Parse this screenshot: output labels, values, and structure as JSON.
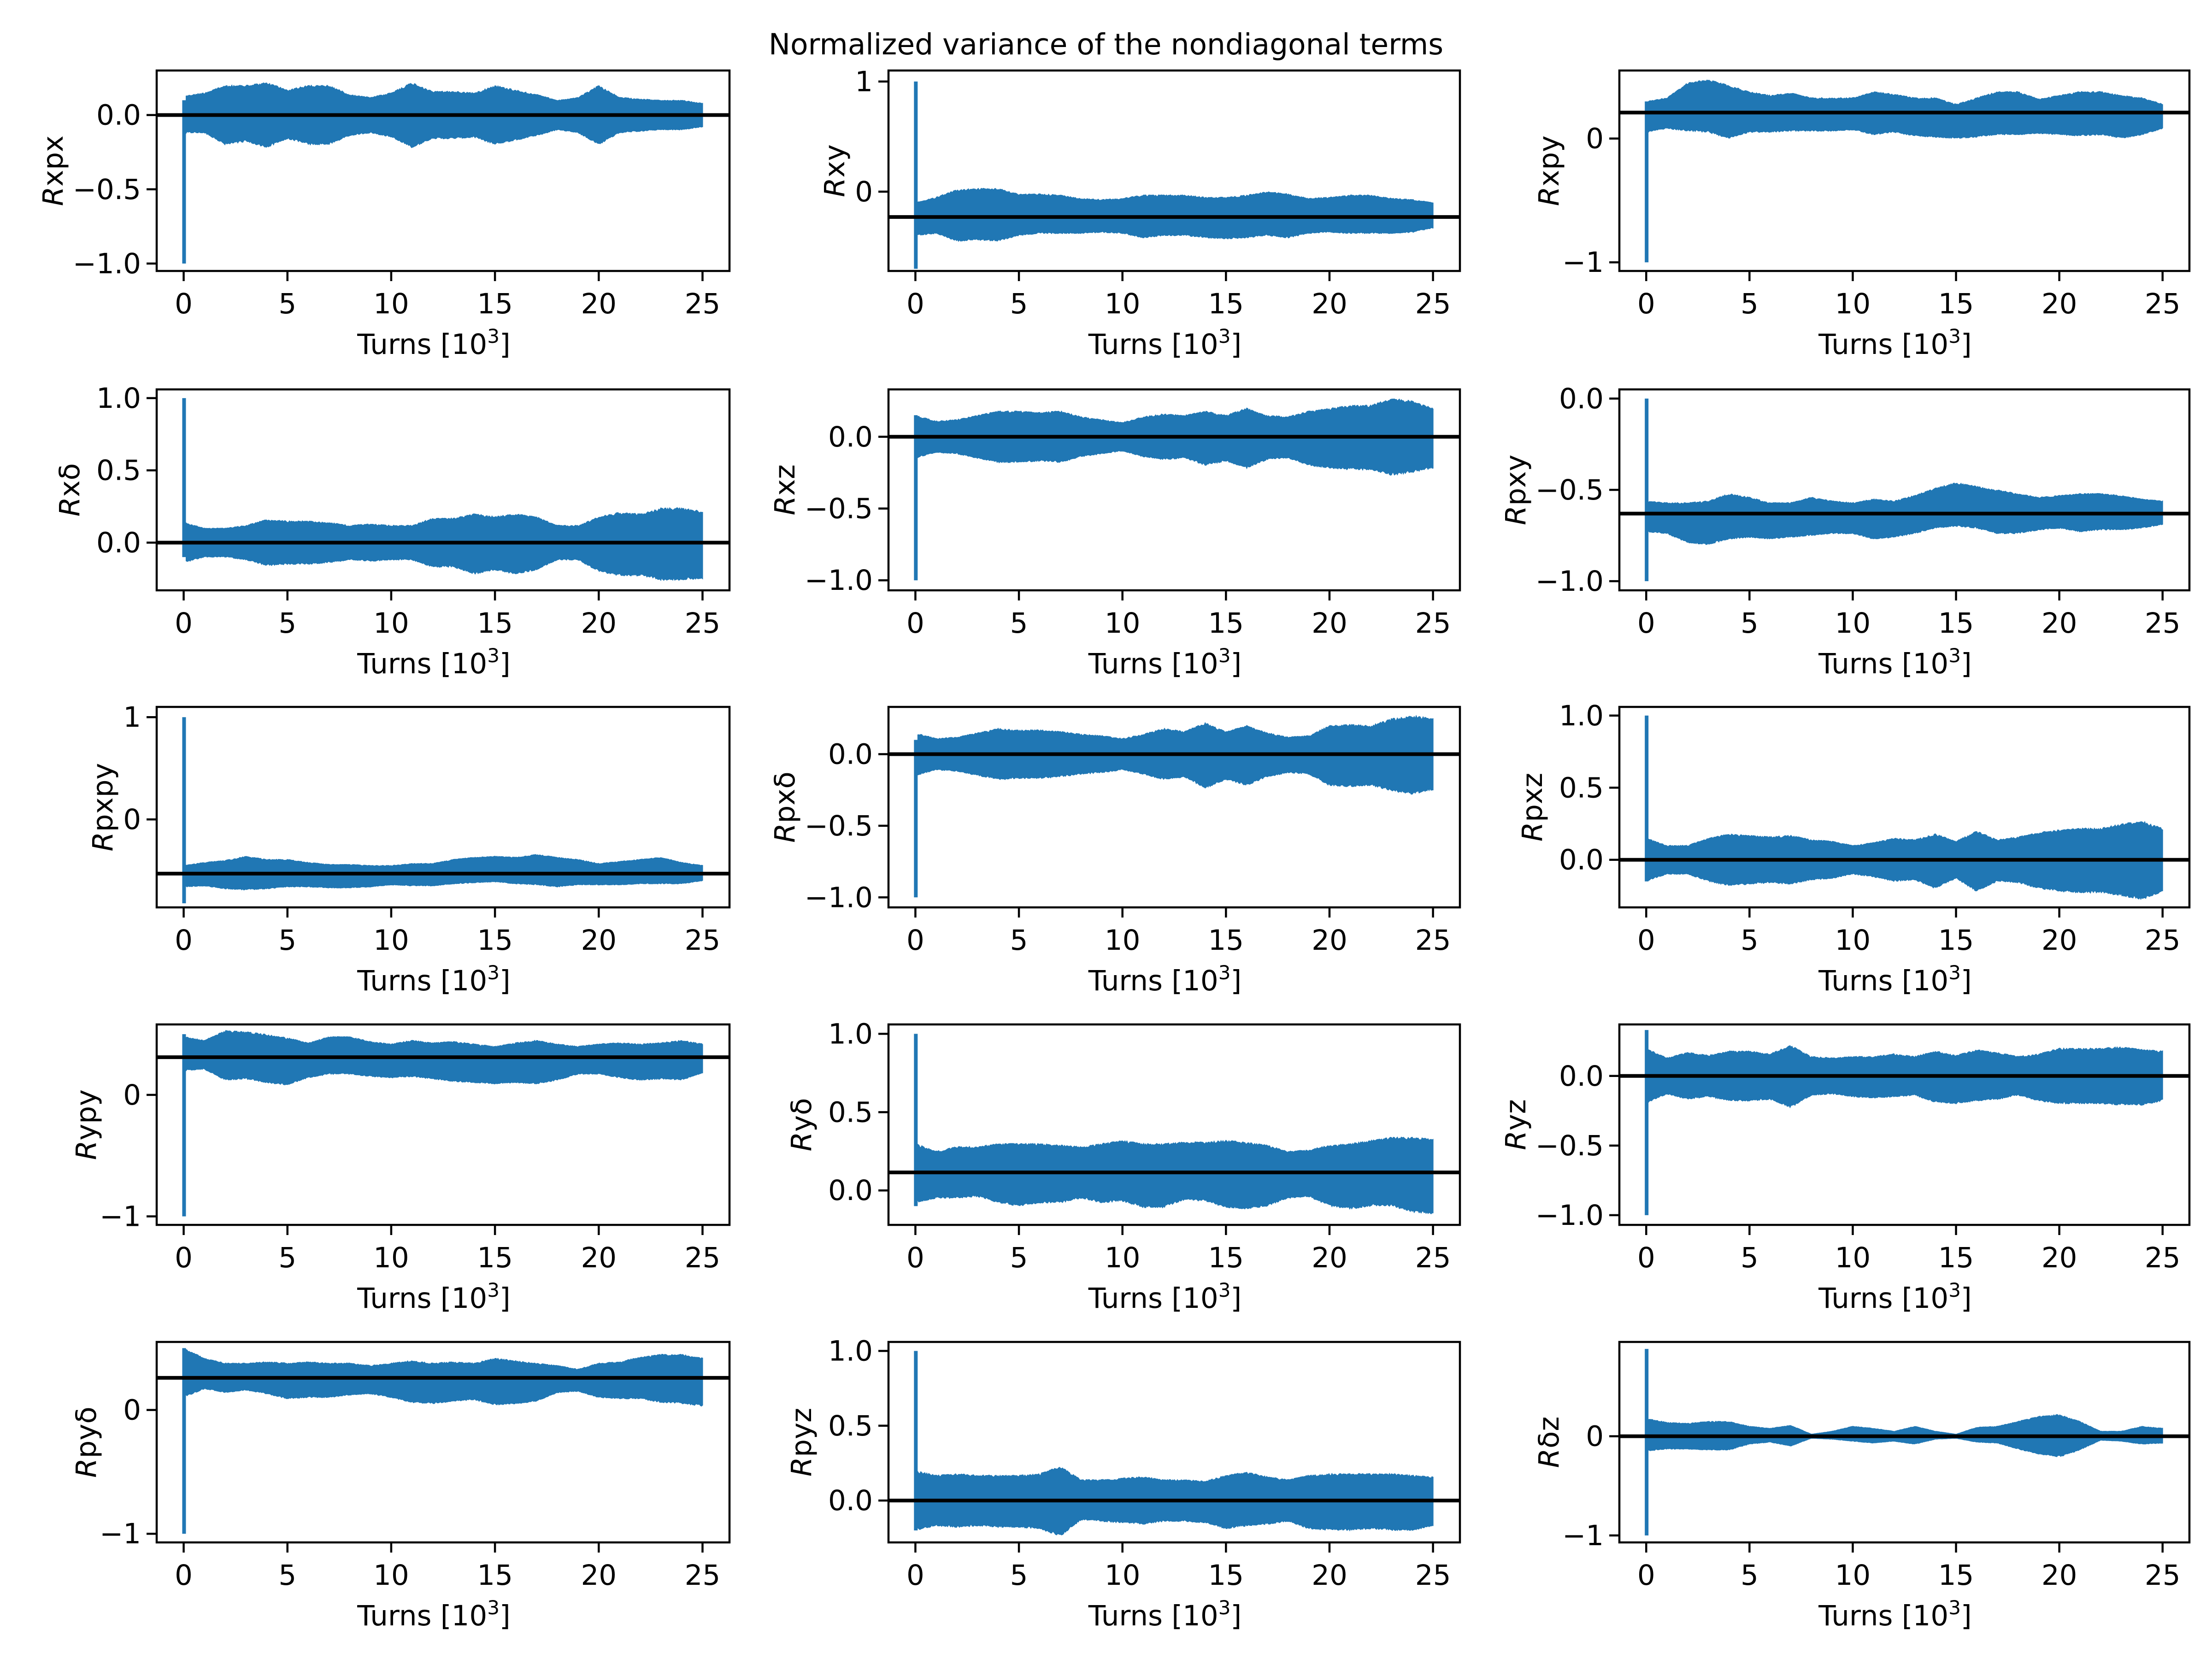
{
  "chart_data": {
    "title": "Normalized variance of the nondiagonal terms",
    "type": "line",
    "layout": {
      "rows": 5,
      "cols": 3
    },
    "series_color": "#2077b4",
    "mean_line_color": "#000000",
    "xlabel": "Turns [10",
    "xlabel_sup": "3",
    "xlabel_close": "]",
    "x_ticks": [
      0,
      5,
      10,
      15,
      20,
      25
    ],
    "x_tick_labels": [
      "0",
      "5",
      "10",
      "15",
      "20",
      "25"
    ],
    "xlim": [
      -1.3,
      26.3
    ],
    "x_envelope_points": [
      0,
      1,
      2,
      3,
      4,
      5,
      6,
      7,
      8,
      9,
      10,
      11,
      12,
      13,
      14,
      15,
      16,
      17,
      18,
      19,
      20,
      21,
      22,
      23,
      24,
      25
    ],
    "panels": [
      {
        "ylabel_main": "R",
        "ylabel_sub": "xpx",
        "ylim": [
          -1.05,
          0.3
        ],
        "yticks": [
          -1.0,
          -0.5,
          0.0
        ],
        "ytick_labels": [
          "−1.0",
          "−0.5",
          "0.0"
        ],
        "mean": 0.0,
        "spike_min": -1.0,
        "spike_max": 0.1,
        "upper": [
          0.13,
          0.15,
          0.2,
          0.2,
          0.22,
          0.17,
          0.2,
          0.2,
          0.14,
          0.12,
          0.15,
          0.22,
          0.16,
          0.16,
          0.15,
          0.2,
          0.17,
          0.14,
          0.1,
          0.12,
          0.2,
          0.12,
          0.11,
          0.1,
          0.1,
          0.08
        ],
        "lower": [
          -0.12,
          -0.12,
          -0.2,
          -0.18,
          -0.22,
          -0.16,
          -0.2,
          -0.2,
          -0.14,
          -0.12,
          -0.15,
          -0.22,
          -0.16,
          -0.16,
          -0.15,
          -0.2,
          -0.17,
          -0.14,
          -0.1,
          -0.12,
          -0.2,
          -0.12,
          -0.11,
          -0.1,
          -0.1,
          -0.08
        ]
      },
      {
        "ylabel_main": "R",
        "ylabel_sub": "xy",
        "ylim": [
          -0.72,
          1.1
        ],
        "yticks": [
          0,
          1
        ],
        "ytick_labels": [
          "0",
          "1"
        ],
        "mean": -0.23,
        "spike_min": -0.7,
        "spike_max": 1.0,
        "upper": [
          -0.1,
          -0.05,
          0.02,
          0.03,
          0.03,
          -0.02,
          -0.02,
          -0.03,
          -0.06,
          -0.07,
          -0.06,
          -0.03,
          -0.03,
          -0.03,
          -0.05,
          -0.05,
          -0.03,
          0.0,
          -0.02,
          -0.06,
          -0.05,
          -0.03,
          -0.03,
          -0.06,
          -0.07,
          -0.1
        ],
        "lower": [
          -0.4,
          -0.38,
          -0.45,
          -0.44,
          -0.45,
          -0.4,
          -0.38,
          -0.38,
          -0.38,
          -0.37,
          -0.38,
          -0.42,
          -0.4,
          -0.4,
          -0.42,
          -0.43,
          -0.42,
          -0.4,
          -0.42,
          -0.38,
          -0.37,
          -0.38,
          -0.38,
          -0.38,
          -0.37,
          -0.33
        ]
      },
      {
        "ylabel_main": "R",
        "ylabel_sub": "xpy",
        "ylim": [
          -1.07,
          0.55
        ],
        "yticks": [
          -1,
          0
        ],
        "ytick_labels": [
          "−1",
          "0"
        ],
        "mean": 0.21,
        "spike_min": -1.0,
        "spike_max": 0.3,
        "upper": [
          0.3,
          0.33,
          0.45,
          0.48,
          0.43,
          0.38,
          0.35,
          0.37,
          0.33,
          0.33,
          0.33,
          0.38,
          0.36,
          0.33,
          0.33,
          0.28,
          0.33,
          0.38,
          0.38,
          0.32,
          0.35,
          0.38,
          0.38,
          0.35,
          0.33,
          0.28
        ],
        "lower": [
          0.05,
          0.08,
          0.06,
          0.05,
          0.0,
          0.05,
          0.05,
          0.06,
          0.06,
          0.06,
          0.07,
          0.03,
          0.05,
          0.02,
          0.01,
          0.0,
          0.01,
          0.03,
          0.03,
          0.04,
          0.03,
          0.02,
          0.03,
          0.0,
          0.03,
          0.08
        ]
      },
      {
        "ylabel_main": "R",
        "ylabel_sub": "xδ",
        "ylim": [
          -0.33,
          1.06
        ],
        "yticks": [
          0.0,
          0.5,
          1.0
        ],
        "ytick_labels": [
          "0.0",
          "0.5",
          "1.0"
        ],
        "mean": 0.0,
        "spike_min": -0.1,
        "spike_max": 1.0,
        "upper": [
          0.14,
          0.1,
          0.1,
          0.12,
          0.16,
          0.15,
          0.15,
          0.14,
          0.12,
          0.13,
          0.12,
          0.12,
          0.17,
          0.17,
          0.2,
          0.18,
          0.2,
          0.18,
          0.12,
          0.12,
          0.18,
          0.21,
          0.2,
          0.24,
          0.24,
          0.22
        ],
        "lower": [
          -0.14,
          -0.1,
          -0.1,
          -0.12,
          -0.16,
          -0.15,
          -0.15,
          -0.14,
          -0.12,
          -0.13,
          -0.12,
          -0.12,
          -0.17,
          -0.17,
          -0.22,
          -0.19,
          -0.22,
          -0.19,
          -0.12,
          -0.12,
          -0.2,
          -0.23,
          -0.23,
          -0.26,
          -0.26,
          -0.25
        ]
      },
      {
        "ylabel_main": "R",
        "ylabel_sub": "xz",
        "ylim": [
          -1.07,
          0.33
        ],
        "yticks": [
          -1.0,
          -0.5,
          0.0
        ],
        "ytick_labels": [
          "−1.0",
          "−0.5",
          "0.0"
        ],
        "mean": 0.0,
        "spike_min": -1.0,
        "spike_max": 0.15,
        "upper": [
          0.15,
          0.11,
          0.12,
          0.15,
          0.18,
          0.18,
          0.17,
          0.18,
          0.14,
          0.12,
          0.1,
          0.14,
          0.16,
          0.15,
          0.18,
          0.15,
          0.2,
          0.15,
          0.14,
          0.18,
          0.2,
          0.22,
          0.22,
          0.27,
          0.25,
          0.2
        ],
        "lower": [
          -0.15,
          -0.11,
          -0.12,
          -0.15,
          -0.18,
          -0.18,
          -0.17,
          -0.18,
          -0.14,
          -0.12,
          -0.1,
          -0.14,
          -0.16,
          -0.15,
          -0.2,
          -0.17,
          -0.22,
          -0.16,
          -0.15,
          -0.2,
          -0.22,
          -0.23,
          -0.23,
          -0.27,
          -0.25,
          -0.22
        ]
      },
      {
        "ylabel_main": "R",
        "ylabel_sub": "pxy",
        "ylim": [
          -1.05,
          0.05
        ],
        "yticks": [
          -1.0,
          -0.5,
          0.0
        ],
        "ytick_labels": [
          "−1.0",
          "−0.5",
          "0.0"
        ],
        "mean": -0.63,
        "spike_min": -1.0,
        "spike_max": 0.0,
        "upper": [
          -0.56,
          -0.57,
          -0.57,
          -0.56,
          -0.52,
          -0.54,
          -0.57,
          -0.57,
          -0.54,
          -0.56,
          -0.57,
          -0.55,
          -0.56,
          -0.53,
          -0.49,
          -0.46,
          -0.48,
          -0.5,
          -0.52,
          -0.54,
          -0.53,
          -0.52,
          -0.52,
          -0.53,
          -0.55,
          -0.56
        ],
        "lower": [
          -0.73,
          -0.74,
          -0.79,
          -0.8,
          -0.77,
          -0.76,
          -0.77,
          -0.76,
          -0.75,
          -0.74,
          -0.74,
          -0.77,
          -0.76,
          -0.74,
          -0.71,
          -0.7,
          -0.71,
          -0.74,
          -0.74,
          -0.72,
          -0.71,
          -0.73,
          -0.72,
          -0.72,
          -0.71,
          -0.69
        ]
      },
      {
        "ylabel_main": "R",
        "ylabel_sub": "pxpy",
        "ylim": [
          -0.86,
          1.1
        ],
        "yticks": [
          0,
          1
        ],
        "ytick_labels": [
          "0",
          "1"
        ],
        "mean": -0.53,
        "spike_min": -0.82,
        "spike_max": 1.0,
        "upper": [
          -0.45,
          -0.42,
          -0.4,
          -0.36,
          -0.39,
          -0.39,
          -0.42,
          -0.44,
          -0.44,
          -0.45,
          -0.45,
          -0.43,
          -0.43,
          -0.39,
          -0.37,
          -0.36,
          -0.37,
          -0.34,
          -0.37,
          -0.39,
          -0.43,
          -0.41,
          -0.39,
          -0.37,
          -0.42,
          -0.45
        ],
        "lower": [
          -0.66,
          -0.65,
          -0.68,
          -0.69,
          -0.68,
          -0.66,
          -0.66,
          -0.67,
          -0.67,
          -0.66,
          -0.64,
          -0.65,
          -0.65,
          -0.63,
          -0.62,
          -0.61,
          -0.63,
          -0.64,
          -0.66,
          -0.64,
          -0.64,
          -0.64,
          -0.63,
          -0.63,
          -0.63,
          -0.6
        ]
      },
      {
        "ylabel_main": "R",
        "ylabel_sub": "pxδ",
        "ylim": [
          -1.07,
          0.33
        ],
        "yticks": [
          -1.0,
          -0.5,
          0.0
        ],
        "ytick_labels": [
          "−1.0",
          "−0.5",
          "0.0"
        ],
        "mean": 0.0,
        "spike_min": -1.0,
        "spike_max": 0.1,
        "upper": [
          0.15,
          0.11,
          0.12,
          0.15,
          0.18,
          0.17,
          0.17,
          0.16,
          0.14,
          0.13,
          0.11,
          0.14,
          0.18,
          0.16,
          0.22,
          0.16,
          0.2,
          0.15,
          0.12,
          0.13,
          0.2,
          0.21,
          0.2,
          0.25,
          0.27,
          0.25
        ],
        "lower": [
          -0.15,
          -0.11,
          -0.12,
          -0.15,
          -0.18,
          -0.17,
          -0.17,
          -0.16,
          -0.14,
          -0.13,
          -0.11,
          -0.14,
          -0.18,
          -0.16,
          -0.24,
          -0.18,
          -0.22,
          -0.16,
          -0.13,
          -0.14,
          -0.22,
          -0.23,
          -0.22,
          -0.26,
          -0.28,
          -0.25
        ]
      },
      {
        "ylabel_main": "R",
        "ylabel_sub": "pxz",
        "ylim": [
          -0.33,
          1.06
        ],
        "yticks": [
          0.0,
          0.5,
          1.0
        ],
        "ytick_labels": [
          "0.0",
          "0.5",
          "1.0"
        ],
        "mean": 0.0,
        "spike_min": -0.15,
        "spike_max": 1.0,
        "upper": [
          0.15,
          0.1,
          0.1,
          0.15,
          0.18,
          0.17,
          0.16,
          0.17,
          0.14,
          0.13,
          0.1,
          0.12,
          0.15,
          0.14,
          0.18,
          0.13,
          0.2,
          0.14,
          0.16,
          0.19,
          0.21,
          0.22,
          0.22,
          0.25,
          0.27,
          0.22
        ],
        "lower": [
          -0.15,
          -0.1,
          -0.1,
          -0.15,
          -0.18,
          -0.17,
          -0.16,
          -0.17,
          -0.14,
          -0.13,
          -0.1,
          -0.12,
          -0.15,
          -0.14,
          -0.2,
          -0.13,
          -0.22,
          -0.15,
          -0.16,
          -0.2,
          -0.22,
          -0.23,
          -0.23,
          -0.25,
          -0.28,
          -0.22
        ]
      },
      {
        "ylabel_main": "R",
        "ylabel_sub": "ypy",
        "ylim": [
          -1.07,
          0.58
        ],
        "yticks": [
          -1,
          0
        ],
        "ytick_labels": [
          "−1",
          "0"
        ],
        "mean": 0.31,
        "spike_min": -1.0,
        "spike_max": 0.5,
        "upper": [
          0.48,
          0.45,
          0.53,
          0.52,
          0.5,
          0.47,
          0.43,
          0.48,
          0.48,
          0.44,
          0.42,
          0.45,
          0.43,
          0.44,
          0.42,
          0.4,
          0.43,
          0.45,
          0.42,
          0.4,
          0.42,
          0.43,
          0.42,
          0.43,
          0.45,
          0.42
        ],
        "lower": [
          0.2,
          0.21,
          0.12,
          0.13,
          0.1,
          0.08,
          0.14,
          0.17,
          0.17,
          0.15,
          0.14,
          0.15,
          0.13,
          0.11,
          0.1,
          0.09,
          0.1,
          0.09,
          0.12,
          0.17,
          0.17,
          0.14,
          0.12,
          0.13,
          0.12,
          0.18
        ]
      },
      {
        "ylabel_main": "R",
        "ylabel_sub": "yδ",
        "ylim": [
          -0.22,
          1.06
        ],
        "yticks": [
          0.0,
          0.5,
          1.0
        ],
        "ytick_labels": [
          "0.0",
          "0.5",
          "1.0"
        ],
        "mean": 0.115,
        "spike_min": -0.1,
        "spike_max": 1.0,
        "upper": [
          0.3,
          0.25,
          0.28,
          0.28,
          0.3,
          0.3,
          0.3,
          0.29,
          0.28,
          0.3,
          0.32,
          0.3,
          0.3,
          0.31,
          0.31,
          0.32,
          0.31,
          0.29,
          0.25,
          0.26,
          0.29,
          0.3,
          0.32,
          0.34,
          0.34,
          0.33
        ],
        "lower": [
          -0.08,
          -0.05,
          -0.05,
          -0.04,
          -0.08,
          -0.1,
          -0.08,
          -0.08,
          -0.05,
          -0.08,
          -0.07,
          -0.11,
          -0.11,
          -0.06,
          -0.07,
          -0.11,
          -0.12,
          -0.1,
          -0.05,
          -0.04,
          -0.1,
          -0.12,
          -0.1,
          -0.1,
          -0.14,
          -0.15
        ]
      },
      {
        "ylabel_main": "R",
        "ylabel_sub": "yz",
        "ylim": [
          -1.07,
          0.37
        ],
        "yticks": [
          -1.0,
          -0.5,
          0.0
        ],
        "ytick_labels": [
          "−1.0",
          "−0.5",
          "0.0"
        ],
        "mean": 0.0,
        "spike_min": -1.0,
        "spike_max": 0.33,
        "upper": [
          0.2,
          0.13,
          0.17,
          0.15,
          0.18,
          0.18,
          0.16,
          0.22,
          0.14,
          0.13,
          0.14,
          0.14,
          0.16,
          0.14,
          0.18,
          0.15,
          0.19,
          0.17,
          0.14,
          0.16,
          0.2,
          0.2,
          0.2,
          0.21,
          0.19,
          0.18
        ],
        "lower": [
          -0.2,
          -0.13,
          -0.17,
          -0.15,
          -0.18,
          -0.18,
          -0.17,
          -0.23,
          -0.14,
          -0.13,
          -0.15,
          -0.16,
          -0.15,
          -0.14,
          -0.19,
          -0.2,
          -0.18,
          -0.17,
          -0.14,
          -0.18,
          -0.2,
          -0.2,
          -0.2,
          -0.21,
          -0.21,
          -0.18
        ]
      },
      {
        "ylabel_main": "R",
        "ylabel_sub": "pyδ",
        "ylim": [
          -1.07,
          0.55
        ],
        "yticks": [
          -1,
          0
        ],
        "ytick_labels": [
          "−1",
          "0"
        ],
        "mean": 0.26,
        "spike_min": -1.0,
        "spike_max": 0.5,
        "upper": [
          0.5,
          0.42,
          0.38,
          0.38,
          0.39,
          0.38,
          0.39,
          0.38,
          0.38,
          0.36,
          0.38,
          0.4,
          0.38,
          0.39,
          0.38,
          0.42,
          0.4,
          0.38,
          0.36,
          0.33,
          0.38,
          0.39,
          0.43,
          0.45,
          0.45,
          0.42
        ],
        "lower": [
          0.1,
          0.17,
          0.14,
          0.16,
          0.13,
          0.09,
          0.1,
          0.1,
          0.12,
          0.13,
          0.1,
          0.06,
          0.05,
          0.07,
          0.08,
          0.04,
          0.05,
          0.07,
          0.14,
          0.15,
          0.1,
          0.09,
          0.09,
          0.06,
          0.05,
          0.03
        ]
      },
      {
        "ylabel_main": "R",
        "ylabel_sub": "pyz",
        "ylim": [
          -0.28,
          1.06
        ],
        "yticks": [
          0.0,
          0.5,
          1.0
        ],
        "ytick_labels": [
          "0.0",
          "0.5",
          "1.0"
        ],
        "mean": 0.0,
        "spike_min": -0.2,
        "spike_max": 1.0,
        "upper": [
          0.2,
          0.17,
          0.18,
          0.17,
          0.17,
          0.17,
          0.18,
          0.23,
          0.14,
          0.14,
          0.15,
          0.16,
          0.14,
          0.14,
          0.13,
          0.17,
          0.19,
          0.16,
          0.14,
          0.17,
          0.18,
          0.18,
          0.18,
          0.18,
          0.17,
          0.16
        ],
        "lower": [
          -0.2,
          -0.17,
          -0.18,
          -0.17,
          -0.18,
          -0.18,
          -0.19,
          -0.24,
          -0.13,
          -0.14,
          -0.15,
          -0.16,
          -0.14,
          -0.14,
          -0.15,
          -0.19,
          -0.17,
          -0.16,
          -0.14,
          -0.19,
          -0.2,
          -0.2,
          -0.19,
          -0.2,
          -0.2,
          -0.17
        ]
      },
      {
        "ylabel_main": "R",
        "ylabel_sub": "δz",
        "ylim": [
          -1.07,
          0.95
        ],
        "yticks": [
          -1,
          0
        ],
        "ytick_labels": [
          "−1",
          "0"
        ],
        "mean": 0.0,
        "spike_min": -1.0,
        "spike_max": 0.88,
        "upper": [
          0.18,
          0.14,
          0.13,
          0.15,
          0.15,
          0.1,
          0.08,
          0.11,
          0.02,
          0.05,
          0.1,
          0.08,
          0.05,
          0.1,
          0.05,
          0.02,
          0.09,
          0.1,
          0.15,
          0.2,
          0.22,
          0.15,
          0.05,
          0.05,
          0.1,
          0.08
        ],
        "lower": [
          -0.15,
          -0.13,
          -0.13,
          -0.14,
          -0.14,
          -0.08,
          -0.06,
          -0.1,
          -0.02,
          -0.03,
          -0.05,
          -0.07,
          -0.05,
          -0.08,
          -0.03,
          -0.02,
          -0.06,
          -0.07,
          -0.13,
          -0.18,
          -0.21,
          -0.14,
          -0.04,
          -0.05,
          -0.08,
          -0.07
        ]
      }
    ]
  }
}
